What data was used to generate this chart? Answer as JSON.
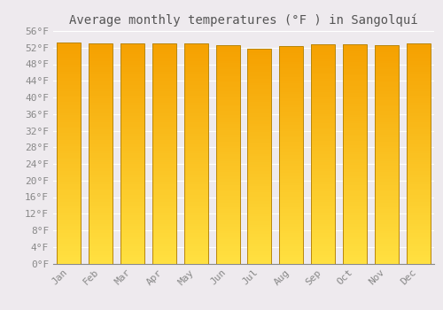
{
  "title": "Average monthly temperatures (°F ) in Sangolquí",
  "months": [
    "Jan",
    "Feb",
    "Mar",
    "Apr",
    "May",
    "Jun",
    "Jul",
    "Aug",
    "Sep",
    "Oct",
    "Nov",
    "Dec"
  ],
  "values": [
    53.2,
    53.1,
    53.1,
    53.1,
    53.1,
    52.5,
    51.8,
    52.3,
    52.9,
    52.7,
    52.5,
    53.1
  ],
  "ylim": [
    0,
    56
  ],
  "yticks": [
    0,
    4,
    8,
    12,
    16,
    20,
    24,
    28,
    32,
    36,
    40,
    44,
    48,
    52,
    56
  ],
  "ytick_labels": [
    "0°F",
    "4°F",
    "8°F",
    "12°F",
    "16°F",
    "20°F",
    "24°F",
    "28°F",
    "32°F",
    "36°F",
    "40°F",
    "44°F",
    "48°F",
    "52°F",
    "56°F"
  ],
  "bar_color_bottom": "#FFE040",
  "bar_color_top": "#F5A000",
  "bar_edge_color": "#B8860B",
  "background_color": "#EEEAEE",
  "grid_color": "#FFFFFF",
  "title_fontsize": 10,
  "tick_fontsize": 8,
  "bar_width": 0.75
}
